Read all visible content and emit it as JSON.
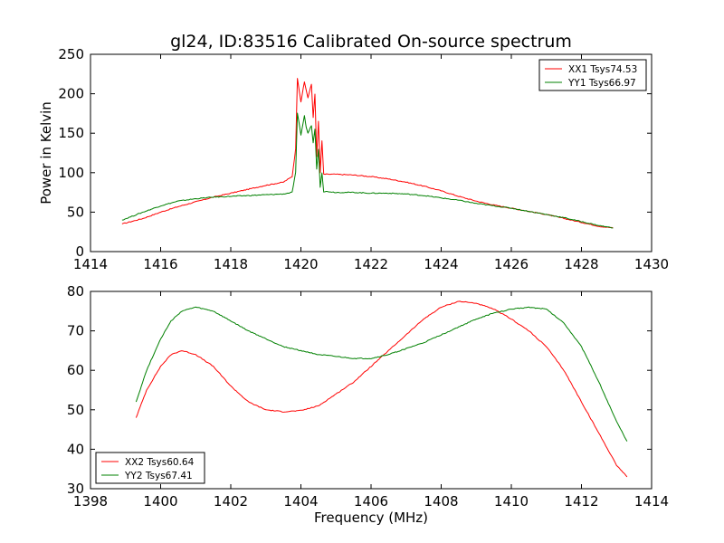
{
  "chart_data": [
    {
      "type": "line",
      "title": "gl24, ID:83516 Calibrated On-source spectrum",
      "xlabel": "",
      "ylabel": "Power in Kelvin",
      "xlim": [
        1414,
        1430
      ],
      "ylim": [
        0,
        250
      ],
      "xticks": [
        "1414",
        "1416",
        "1418",
        "1420",
        "1422",
        "1424",
        "1426",
        "1428",
        "1430"
      ],
      "yticks": [
        "0",
        "50",
        "100",
        "150",
        "200",
        "250"
      ],
      "legend": "top-right",
      "grid": false,
      "series": [
        {
          "name": "XX1 Tsys74.53",
          "color": "#ff0000",
          "x": [
            1414.9,
            1415.5,
            1416.0,
            1416.5,
            1417.0,
            1417.5,
            1418.0,
            1418.5,
            1419.0,
            1419.5,
            1419.75,
            1419.85,
            1419.9,
            1419.95,
            1420.0,
            1420.1,
            1420.15,
            1420.2,
            1420.3,
            1420.35,
            1420.4,
            1420.45,
            1420.5,
            1420.55,
            1420.6,
            1420.65,
            1420.8,
            1421.0,
            1421.5,
            1422.0,
            1422.5,
            1423.0,
            1423.5,
            1424.0,
            1424.5,
            1425.0,
            1425.5,
            1426.0,
            1426.5,
            1427.0,
            1427.5,
            1428.0,
            1428.5,
            1428.9
          ],
          "values": [
            35,
            42,
            50,
            57,
            63,
            69,
            74,
            79,
            84,
            88,
            95,
            130,
            220,
            205,
            190,
            215,
            205,
            195,
            212,
            170,
            200,
            120,
            165,
            100,
            140,
            98,
            98,
            98,
            97,
            95,
            92,
            88,
            83,
            77,
            70,
            64,
            59,
            55,
            51,
            47,
            42,
            37,
            32,
            30
          ]
        },
        {
          "name": "YY1 Tsys66.97",
          "color": "#008000",
          "x": [
            1414.9,
            1415.5,
            1416.0,
            1416.5,
            1417.0,
            1417.5,
            1418.0,
            1418.5,
            1419.0,
            1419.5,
            1419.75,
            1419.85,
            1419.9,
            1419.95,
            1420.0,
            1420.1,
            1420.15,
            1420.2,
            1420.3,
            1420.35,
            1420.4,
            1420.45,
            1420.5,
            1420.55,
            1420.6,
            1420.65,
            1420.8,
            1421.0,
            1421.5,
            1422.0,
            1422.5,
            1423.0,
            1423.5,
            1424.0,
            1424.5,
            1425.0,
            1425.5,
            1426.0,
            1426.5,
            1427.0,
            1427.5,
            1428.0,
            1428.5,
            1428.9
          ],
          "values": [
            40,
            50,
            58,
            64,
            67,
            69,
            70,
            71,
            72,
            73,
            75,
            100,
            175,
            162,
            148,
            172,
            158,
            150,
            160,
            138,
            155,
            105,
            130,
            82,
            100,
            76,
            76,
            75,
            75,
            74,
            74,
            73,
            71,
            68,
            65,
            61,
            58,
            55,
            51,
            47,
            43,
            38,
            33,
            30
          ]
        }
      ]
    },
    {
      "type": "line",
      "title": "",
      "xlabel": "Frequency (MHz)",
      "ylabel": "",
      "xlim": [
        1398,
        1414
      ],
      "ylim": [
        30,
        80
      ],
      "xticks": [
        "1398",
        "1400",
        "1402",
        "1404",
        "1406",
        "1408",
        "1410",
        "1412",
        "1414"
      ],
      "yticks": [
        "30",
        "40",
        "50",
        "60",
        "70",
        "80"
      ],
      "legend": "bottom-left",
      "grid": false,
      "series": [
        {
          "name": "XX2 Tsys60.64",
          "color": "#ff0000",
          "x": [
            1399.3,
            1399.6,
            1400.0,
            1400.3,
            1400.6,
            1401.0,
            1401.5,
            1402.0,
            1402.5,
            1403.0,
            1403.5,
            1404.0,
            1404.5,
            1405.0,
            1405.5,
            1406.0,
            1406.5,
            1407.0,
            1407.5,
            1408.0,
            1408.5,
            1409.0,
            1409.5,
            1410.0,
            1410.5,
            1411.0,
            1411.5,
            1412.0,
            1412.5,
            1413.0,
            1413.3
          ],
          "values": [
            48,
            55,
            61,
            64,
            65,
            64,
            61,
            56,
            52,
            50,
            49.5,
            49.8,
            51,
            54,
            57,
            61,
            65,
            69,
            73,
            76,
            77.5,
            77,
            75.5,
            73,
            70,
            66,
            60,
            52,
            44,
            36,
            33
          ]
        },
        {
          "name": "YY2 Tsys67.41",
          "color": "#008000",
          "x": [
            1399.3,
            1399.6,
            1400.0,
            1400.3,
            1400.6,
            1401.0,
            1401.5,
            1402.0,
            1402.5,
            1403.0,
            1403.5,
            1404.0,
            1404.5,
            1405.0,
            1405.5,
            1406.0,
            1406.5,
            1407.0,
            1407.5,
            1408.0,
            1408.5,
            1409.0,
            1409.5,
            1410.0,
            1410.5,
            1411.0,
            1411.5,
            1412.0,
            1412.5,
            1413.0,
            1413.3
          ],
          "values": [
            52,
            60,
            68,
            72.5,
            75,
            76,
            75,
            72.5,
            70,
            68,
            66,
            65,
            64,
            63.5,
            63,
            63,
            64,
            65.5,
            67,
            69,
            71,
            73,
            74.5,
            75.5,
            76,
            75.5,
            72,
            66,
            57,
            47,
            42
          ]
        }
      ]
    }
  ]
}
